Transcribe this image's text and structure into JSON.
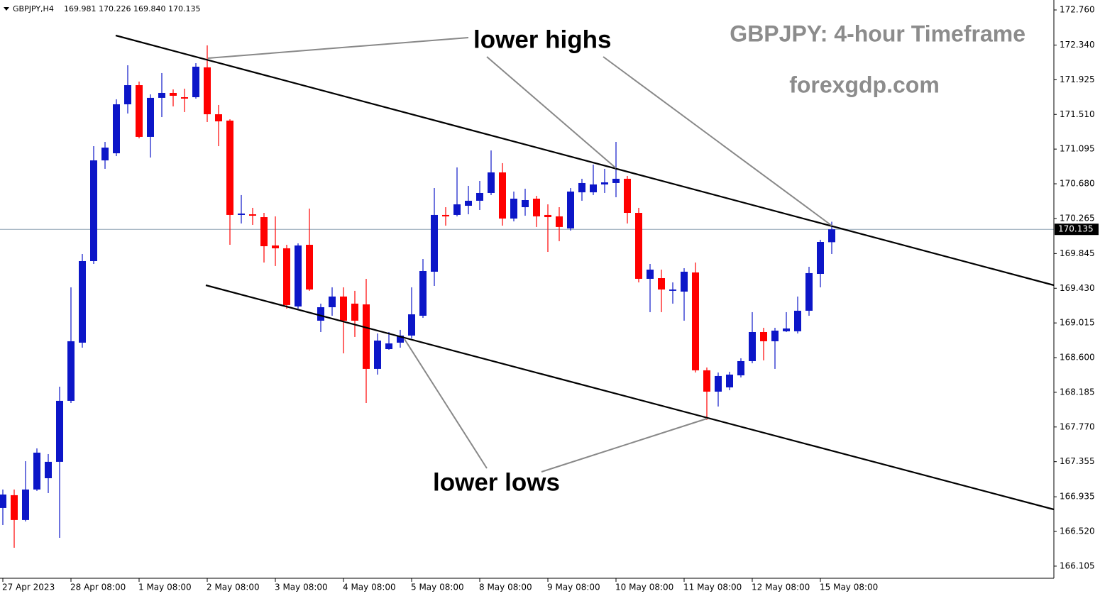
{
  "chart_data": {
    "type": "candlestick",
    "symbol": "GBPJPY,H4",
    "ohlc_label": "169.981 170.226 169.840 170.135",
    "title": "GBPJPY: 4-hour Timeframe",
    "subtitle": "forexgdp.com",
    "annotations": [
      "lower highs",
      "lower lows"
    ],
    "up_color": "#0c16c8",
    "down_color": "#ff0000",
    "current_price": 170.135,
    "ylim": [
      165.96,
      172.879
    ],
    "yticks": [
      {
        "value": 172.76,
        "label": "172.760"
      },
      {
        "value": 172.34,
        "label": "172.340"
      },
      171.925,
      {
        "value": 171.51,
        "label": "171.510"
      },
      171.095,
      {
        "value": 170.68,
        "label": "170.680"
      },
      170.265,
      169.845,
      {
        "value": 169.43,
        "label": "169.430"
      },
      169.015,
      {
        "value": 168.6,
        "label": "168.600"
      },
      168.185,
      {
        "value": 167.77,
        "label": "167.770"
      },
      167.355,
      166.935,
      {
        "value": 166.52,
        "label": "166.520"
      },
      166.105
    ],
    "categories": [
      "27 Apr 2023",
      null,
      null,
      null,
      null,
      null,
      "28 Apr 08:00",
      null,
      null,
      null,
      null,
      null,
      "1 May 08:00",
      null,
      null,
      null,
      null,
      null,
      "2 May 08:00",
      null,
      null,
      null,
      null,
      null,
      "3 May 08:00",
      null,
      null,
      null,
      null,
      null,
      "4 May 08:00",
      null,
      null,
      null,
      null,
      null,
      "5 May 08:00",
      null,
      null,
      null,
      null,
      null,
      "8 May 08:00",
      null,
      null,
      null,
      null,
      null,
      "9 May 08:00",
      null,
      null,
      null,
      null,
      null,
      "10 May 08:00",
      null,
      null,
      null,
      null,
      null,
      "11 May 08:00",
      null,
      null,
      null,
      null,
      null,
      "12 May 08:00",
      null,
      null,
      null,
      null,
      null,
      "15 May 08:00",
      null
    ],
    "open": [
      166.801,
      166.954,
      166.657,
      167.022,
      167.157,
      167.353,
      168.083,
      168.779,
      169.755,
      170.96,
      171.045,
      171.631,
      171.86,
      171.241,
      171.708,
      171.767,
      171.716,
      171.716,
      172.073,
      171.512,
      171.436,
      170.307,
      170.315,
      170.281,
      169.942,
      169.908,
      169.212,
      169.95,
      169.042,
      169.203,
      169.331,
      169.246,
      169.237,
      168.465,
      168.702,
      168.779,
      168.864,
      169.101,
      169.628,
      170.307,
      170.307,
      170.417,
      170.477,
      170.57,
      170.816,
      170.264,
      170.4,
      170.502,
      170.307,
      170.29,
      170.146,
      170.578,
      170.578,
      170.672,
      170.689,
      170.74,
      170.332,
      169.543,
      169.551,
      169.399,
      169.39,
      169.619,
      168.448,
      168.193,
      168.244,
      168.388,
      168.558,
      168.906,
      168.796,
      168.915,
      168.915,
      169.161,
      169.602,
      169.981
    ],
    "high": [
      167.022,
      167.022,
      167.361,
      167.514,
      167.446,
      168.252,
      169.441,
      169.84,
      171.13,
      171.181,
      171.691,
      172.098,
      171.903,
      171.75,
      172.005,
      171.809,
      171.818,
      172.123,
      172.336,
      171.623,
      171.452,
      170.545,
      170.392,
      170.332,
      170.29,
      169.95,
      169.967,
      170.383,
      169.246,
      169.441,
      169.441,
      169.399,
      169.543,
      168.889,
      168.906,
      168.932,
      169.441,
      169.78,
      170.629,
      170.4,
      170.876,
      170.655,
      170.714,
      171.079,
      170.927,
      170.587,
      170.621,
      170.536,
      170.434,
      170.4,
      170.629,
      170.74,
      170.91,
      170.859,
      171.181,
      170.774,
      170.392,
      169.721,
      169.653,
      169.5,
      169.67,
      169.738,
      168.482,
      168.422,
      168.431,
      168.592,
      169.144,
      168.957,
      168.957,
      169.144,
      169.331,
      169.687,
      170.01,
      170.226
    ],
    "low": [
      166.597,
      166.325,
      166.64,
      167.005,
      166.979,
      166.444,
      168.057,
      168.719,
      169.721,
      170.859,
      171.011,
      171.521,
      171.224,
      170.994,
      171.478,
      171.606,
      171.538,
      171.699,
      171.419,
      171.13,
      169.95,
      170.205,
      170.188,
      169.738,
      169.696,
      169.186,
      169.186,
      169.399,
      168.906,
      169.101,
      168.651,
      168.847,
      168.057,
      168.397,
      168.694,
      168.719,
      168.83,
      169.076,
      169.458,
      170.179,
      170.29,
      170.315,
      170.366,
      170.545,
      170.179,
      170.23,
      170.298,
      170.163,
      169.865,
      169.993,
      170.12,
      170.477,
      170.545,
      170.57,
      170.519,
      170.205,
      169.5,
      169.144,
      169.144,
      169.246,
      169.042,
      168.422,
      167.854,
      168.015,
      168.21,
      168.363,
      168.533,
      168.567,
      168.465,
      168.906,
      168.889,
      169.101,
      169.441,
      169.84
    ],
    "close": [
      166.962,
      166.657,
      167.022,
      167.463,
      167.353,
      168.083,
      168.796,
      169.755,
      170.96,
      171.113,
      171.631,
      171.86,
      171.241,
      171.708,
      171.767,
      171.733,
      171.699,
      172.081,
      171.512,
      171.427,
      170.307,
      170.324,
      170.298,
      169.933,
      169.908,
      169.229,
      169.942,
      169.415,
      169.203,
      169.331,
      169.042,
      169.042,
      168.465,
      168.804,
      168.77,
      168.864,
      169.118,
      169.636,
      170.307,
      170.29,
      170.434,
      170.477,
      170.57,
      170.816,
      170.264,
      170.502,
      170.485,
      170.29,
      170.281,
      170.163,
      170.587,
      170.689,
      170.672,
      170.697,
      170.74,
      170.332,
      169.543,
      169.653,
      169.415,
      169.415,
      169.628,
      168.448,
      168.193,
      168.38,
      168.397,
      168.558,
      168.906,
      168.796,
      168.923,
      168.949,
      169.161,
      169.611,
      169.984,
      170.135
    ]
  }
}
